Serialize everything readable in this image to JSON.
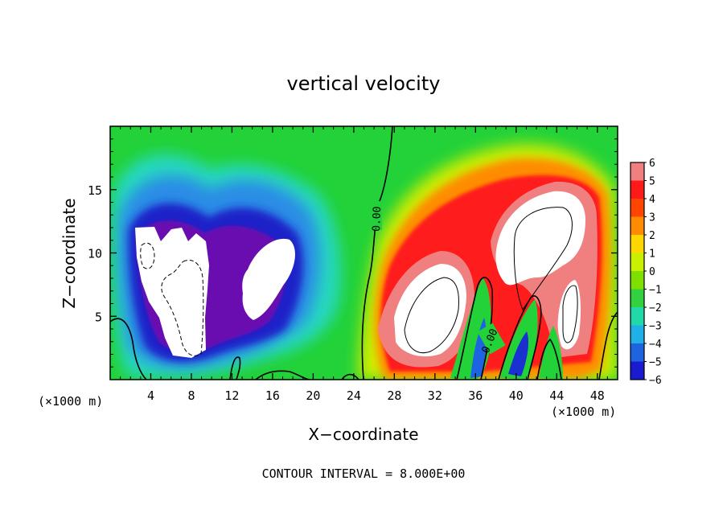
{
  "chart_data": {
    "type": "heatmap",
    "title": "vertical velocity",
    "xlabel": "X−coordinate",
    "ylabel": "Z−coordinate",
    "x_unit_label": "(×1000 m)",
    "y_unit_label": "(×1000 m)",
    "xlim": [
      0,
      50
    ],
    "ylim": [
      0,
      20
    ],
    "x_ticks": [
      4,
      8,
      12,
      16,
      20,
      24,
      28,
      32,
      36,
      40,
      44,
      48
    ],
    "x_tick_labels": [
      "4",
      "8",
      "12",
      "16",
      "20",
      "24",
      "28",
      "32",
      "36",
      "40",
      "44",
      "48"
    ],
    "y_ticks": [
      5,
      10,
      15
    ],
    "y_tick_labels": [
      "5",
      "10",
      "15"
    ],
    "colorbar": {
      "min": -6,
      "max": 6,
      "tick_labels": [
        "6",
        "5",
        "4",
        "3",
        "2",
        "1",
        "0",
        "−1",
        "−2",
        "−3",
        "−4",
        "−5",
        "−6"
      ],
      "colors": [
        "#f08080",
        "#ff1a1a",
        "#ff4500",
        "#ff8c00",
        "#ffd700",
        "#c8f000",
        "#7fe000",
        "#33d040",
        "#20d8a8",
        "#20b0e8",
        "#1e64e0",
        "#1a1ad0",
        "#5a00a8"
      ]
    },
    "contour_labels": [
      "0.00",
      "0.00"
    ],
    "footnote": "CONTOUR INTERVAL = 8.000E+00",
    "features": [
      {
        "sign": "negative",
        "x_center": 7.5,
        "z_center": 7.5,
        "note": "strong downdraft, below −6"
      },
      {
        "sign": "negative",
        "x_center": 15.5,
        "z_center": 7.5,
        "note": "strong downdraft, below −6"
      },
      {
        "sign": "positive",
        "x_center": 31.5,
        "z_center": 5.5,
        "note": "strong updraft, above 6"
      },
      {
        "sign": "positive",
        "x_center": 43.5,
        "z_center": 9.5,
        "note": "strong updraft, above 6"
      }
    ]
  },
  "colors": {
    "background": "#22d238",
    "positive_core": "#ffffff",
    "negative_core": "#ffffff",
    "contour": "#000000"
  }
}
